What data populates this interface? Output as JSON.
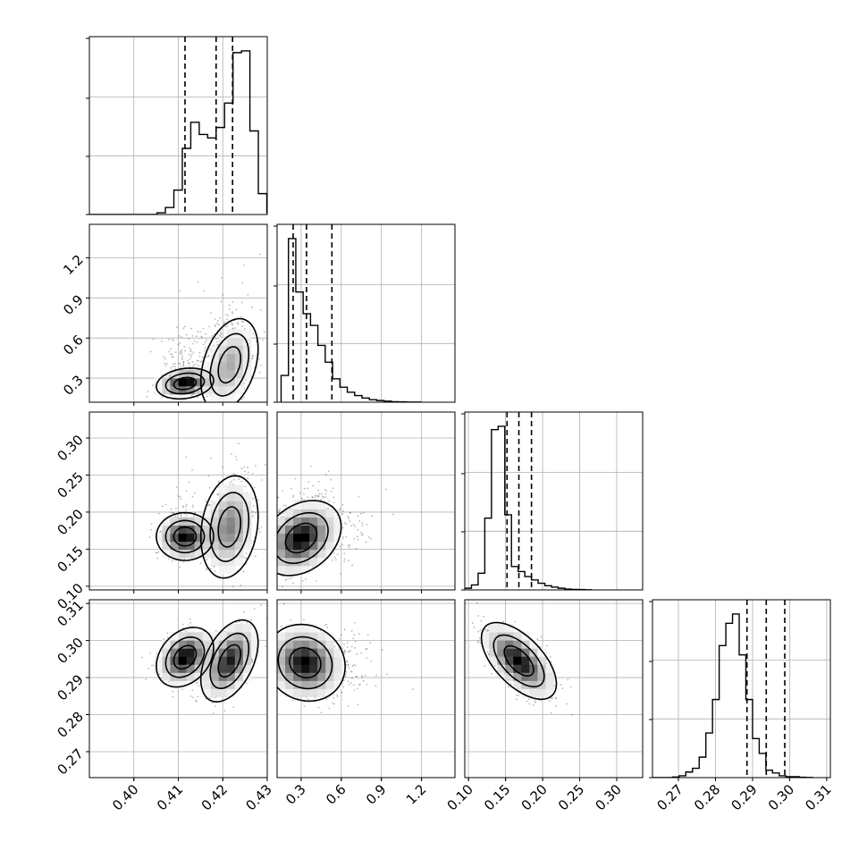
{
  "chart_data": {
    "type": "corner",
    "grid": true,
    "tick_labels": {
      "p0": [
        "0.40",
        "0.41",
        "0.42",
        "0.43"
      ],
      "p1": [
        "0.3",
        "0.6",
        "0.9",
        "1.2"
      ],
      "p2": [
        "0.10",
        "0.15",
        "0.20",
        "0.25",
        "0.30"
      ],
      "p3": [
        "0.27",
        "0.28",
        "0.29",
        "0.30",
        "0.31"
      ]
    },
    "params": [
      {
        "range": [
          0.39,
          0.43
        ],
        "ticks": [
          0.4,
          0.41,
          0.42,
          0.43
        ],
        "quantiles": [
          0.4115,
          0.4185,
          0.4222
        ],
        "hist": {
          "start": 0.39,
          "width": 0.0019,
          "counts": [
            0,
            0,
            0,
            0,
            0,
            0,
            0,
            0,
            0.01,
            0.04,
            0.14,
            0.38,
            0.53,
            0.46,
            0.44,
            0.5,
            0.64,
            0.93,
            0.94,
            0.48,
            0.12,
            0.01,
            0
          ]
        }
      },
      {
        "range": [
          0.12,
          1.45
        ],
        "ticks": [
          0.3,
          0.6,
          0.9,
          1.2
        ],
        "quantiles": [
          0.24,
          0.34,
          0.53
        ],
        "hist": {
          "start": 0.15,
          "width": 0.055,
          "counts": [
            0.16,
            0.98,
            0.66,
            0.53,
            0.46,
            0.34,
            0.24,
            0.14,
            0.09,
            0.06,
            0.04,
            0.025,
            0.015,
            0.01,
            0.006,
            0.003,
            0.002,
            0.001,
            0.001
          ]
        }
      },
      {
        "range": [
          0.095,
          0.335
        ],
        "ticks": [
          0.1,
          0.15,
          0.2,
          0.25,
          0.3
        ],
        "quantiles": [
          0.152,
          0.168,
          0.185
        ],
        "hist": {
          "start": 0.095,
          "width": 0.009,
          "counts": [
            0.01,
            0.03,
            0.1,
            0.43,
            0.96,
            0.98,
            0.45,
            0.14,
            0.11,
            0.08,
            0.06,
            0.04,
            0.025,
            0.017,
            0.01,
            0.005,
            0.003,
            0.002,
            0.001
          ]
        }
      },
      {
        "range": [
          0.263,
          0.311
        ],
        "ticks": [
          0.27,
          0.28,
          0.29,
          0.3,
          0.31
        ],
        "quantiles": [
          0.2885,
          0.2937,
          0.2987
        ],
        "hist": {
          "start": 0.263,
          "width": 0.0018,
          "counts": [
            0,
            0,
            0,
            0.003,
            0.01,
            0.03,
            0.05,
            0.11,
            0.24,
            0.42,
            0.71,
            0.83,
            0.88,
            0.66,
            0.42,
            0.21,
            0.13,
            0.04,
            0.025,
            0.01,
            0.005,
            0.005,
            0.002,
            0.001
          ]
        }
      }
    ],
    "pairs": [
      {
        "x": 0,
        "y": 1,
        "modes": [
          {
            "mx": 0.4115,
            "my": 0.26,
            "sx": 0.0028,
            "sy": 0.05,
            "rho": 0.2,
            "w": 0.45
          },
          {
            "mx": 0.4215,
            "my": 0.4,
            "sx": 0.0028,
            "sy": 0.15,
            "rho": 0.35,
            "w": 0.55
          }
        ]
      },
      {
        "x": 0,
        "y": 2,
        "modes": [
          {
            "mx": 0.4115,
            "my": 0.167,
            "sx": 0.0028,
            "sy": 0.014,
            "rho": 0,
            "w": 0.45
          },
          {
            "mx": 0.4215,
            "my": 0.18,
            "sx": 0.0028,
            "sy": 0.03,
            "rho": 0.2,
            "w": 0.55
          }
        ]
      },
      {
        "x": 0,
        "y": 3,
        "modes": [
          {
            "mx": 0.4115,
            "my": 0.2955,
            "sx": 0.0028,
            "sy": 0.0035,
            "rho": 0.3,
            "w": 0.45
          },
          {
            "mx": 0.4215,
            "my": 0.2945,
            "sx": 0.0028,
            "sy": 0.0048,
            "rho": 0.45,
            "w": 0.55
          }
        ]
      },
      {
        "x": 1,
        "y": 2,
        "modes": [
          {
            "mx": 0.3,
            "my": 0.165,
            "sx": 0.13,
            "sy": 0.022,
            "rho": 0.3,
            "w": 1
          }
        ]
      },
      {
        "x": 1,
        "y": 3,
        "modes": [
          {
            "mx": 0.33,
            "my": 0.294,
            "sx": 0.13,
            "sy": 0.0045,
            "rho": -0.1,
            "w": 1
          }
        ]
      },
      {
        "x": 2,
        "y": 3,
        "modes": [
          {
            "mx": 0.168,
            "my": 0.2945,
            "sx": 0.022,
            "sy": 0.0045,
            "rho": -0.6,
            "w": 1
          }
        ]
      }
    ]
  }
}
